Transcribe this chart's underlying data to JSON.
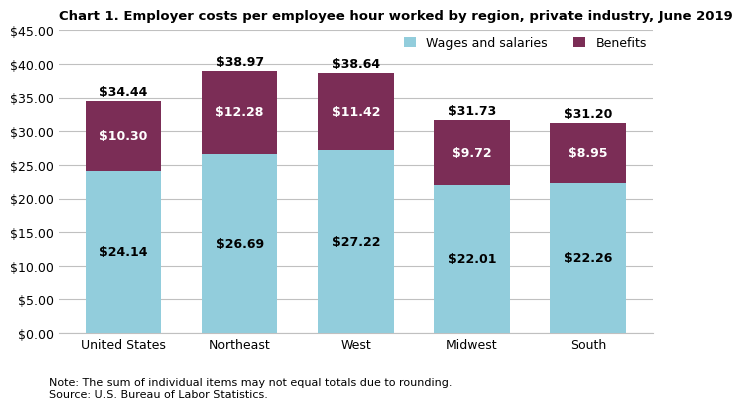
{
  "title": "Chart 1. Employer costs per employee hour worked by region, private industry, June 2019",
  "categories": [
    "United States",
    "Northeast",
    "West",
    "Midwest",
    "South"
  ],
  "wages": [
    24.14,
    26.69,
    27.22,
    22.01,
    22.26
  ],
  "benefits": [
    10.3,
    12.28,
    11.42,
    9.72,
    8.95
  ],
  "totals": [
    34.44,
    38.97,
    38.64,
    31.73,
    31.2
  ],
  "wages_color": "#92CDDC",
  "benefits_color": "#7B2D56",
  "wages_label": "Wages and salaries",
  "benefits_label": "Benefits",
  "ylim": [
    0,
    45
  ],
  "yticks": [
    0,
    5,
    10,
    15,
    20,
    25,
    30,
    35,
    40,
    45
  ],
  "note": "Note: The sum of individual items may not equal totals due to rounding.\nSource: U.S. Bureau of Labor Statistics.",
  "title_fontsize": 9.5,
  "label_fontsize": 9,
  "tick_fontsize": 9,
  "legend_fontsize": 9,
  "note_fontsize": 8,
  "bar_width": 0.65
}
